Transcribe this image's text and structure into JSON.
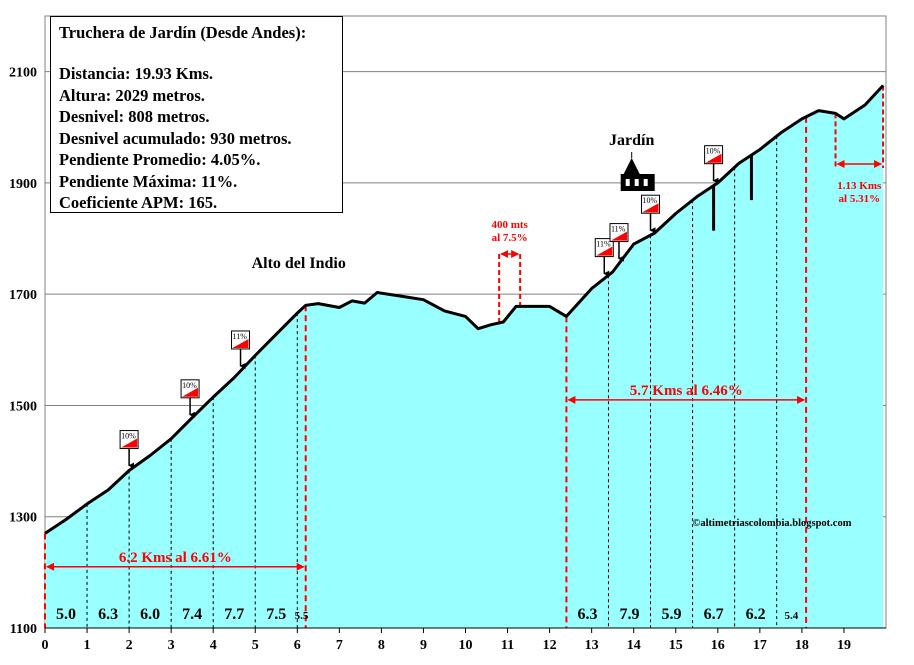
{
  "info": {
    "title": "Truchera de Jardín (Desde Andes):",
    "lines": [
      "Distancia: 19.93 Kms.",
      "Altura:  2029 metros.",
      "Desnivel: 808 metros.",
      "Desnivel acumulado: 930 metros.",
      "Pendiente Promedio: 4.05%.",
      "Pendiente Máxima: 11%.",
      "Coeficiente APM: 165."
    ]
  },
  "chart_data": {
    "type": "area",
    "title": "Truchera de Jardín (Desde Andes)",
    "xlim": [
      0,
      20
    ],
    "ylim": [
      1100,
      2200
    ],
    "x_ticks": [
      "0",
      "1",
      "2",
      "3",
      "4",
      "5",
      "6",
      "7",
      "8",
      "9",
      "10",
      "11",
      "12",
      "13",
      "14",
      "15",
      "16",
      "17",
      "18",
      "19"
    ],
    "y_ticks": [
      "1100",
      "1300",
      "1500",
      "1700",
      "1900",
      "2100"
    ],
    "profile": {
      "x": [
        0,
        0.5,
        1,
        1.5,
        2,
        2.5,
        3,
        3.5,
        4,
        4.5,
        5,
        5.5,
        6,
        6.2,
        6.5,
        7,
        7.3,
        7.6,
        7.9,
        8.5,
        9,
        9.5,
        10,
        10.3,
        10.6,
        10.9,
        11.2,
        11.5,
        12,
        12.4,
        13,
        13.5,
        14,
        14.5,
        15,
        15.5,
        16,
        16.5,
        16.8,
        17,
        17.5,
        18,
        18.4,
        18.8,
        19,
        19.5,
        19.93
      ],
      "y": [
        1270,
        1295,
        1323,
        1348,
        1383,
        1410,
        1440,
        1478,
        1515,
        1550,
        1590,
        1628,
        1666,
        1680,
        1683,
        1676,
        1688,
        1684,
        1703,
        1696,
        1690,
        1670,
        1660,
        1638,
        1645,
        1650,
        1678,
        1678,
        1678,
        1660,
        1710,
        1740,
        1790,
        1810,
        1845,
        1875,
        1900,
        1935,
        1950,
        1960,
        1990,
        2015,
        2030,
        2025,
        2015,
        2040,
        2075
      ]
    },
    "segments": [
      {
        "x1": 0,
        "x2": 1,
        "label": "5.0"
      },
      {
        "x1": 1,
        "x2": 2,
        "label": "6.3"
      },
      {
        "x1": 2,
        "x2": 3,
        "label": "6.0"
      },
      {
        "x1": 3,
        "x2": 4,
        "label": "7.4"
      },
      {
        "x1": 4,
        "x2": 5,
        "label": "7.7"
      },
      {
        "x1": 5,
        "x2": 6,
        "label": "7.5"
      },
      {
        "x1": 6,
        "x2": 6.2,
        "label": "5.5"
      },
      {
        "x1": 12.4,
        "x2": 13.4,
        "label": "6.3"
      },
      {
        "x1": 13.4,
        "x2": 14.4,
        "label": "7.9"
      },
      {
        "x1": 14.4,
        "x2": 15.4,
        "label": "5.9"
      },
      {
        "x1": 15.4,
        "x2": 16.4,
        "label": "6.7"
      },
      {
        "x1": 16.4,
        "x2": 17.4,
        "label": "6.2"
      },
      {
        "x1": 17.4,
        "x2": 18.1,
        "label": "5.4"
      }
    ],
    "climbs": [
      {
        "x1": 0,
        "x2": 6.2,
        "y": 1210,
        "label": "6.2 Kms  al 6.61%"
      },
      {
        "x1": 12.4,
        "x2": 18.1,
        "y": 1510,
        "label": "5.7 Kms  al 6.46%"
      }
    ],
    "short_climbs": [
      {
        "x1": 10.8,
        "x2": 11.3,
        "label1": "400 mts",
        "label2": "al 7.5%"
      },
      {
        "x1": 18.8,
        "x2": 19.93,
        "label1": "1.13 Kms",
        "label2": "al 5.31%"
      }
    ],
    "slope_signs": [
      {
        "x": 2.0,
        "label": "10%"
      },
      {
        "x": 3.45,
        "label": "10%"
      },
      {
        "x": 4.65,
        "label": "11%"
      },
      {
        "x": 13.3,
        "label": "11%"
      },
      {
        "x": 13.65,
        "label": "11%"
      },
      {
        "x": 14.4,
        "label": "10%"
      },
      {
        "x": 15.9,
        "label": "10%"
      }
    ],
    "ticks_marks": [
      15.9,
      16.8
    ],
    "places": [
      {
        "x": 6.2,
        "label": "Alto del Indio"
      },
      {
        "x": 14.0,
        "label": "Jardín"
      }
    ],
    "watermark": "©altimetriascolombia.blogspot.com"
  },
  "colors": {
    "fill": "#99FFFF",
    "line": "#000000",
    "accent": "#FF0000",
    "grid": "#808080"
  }
}
